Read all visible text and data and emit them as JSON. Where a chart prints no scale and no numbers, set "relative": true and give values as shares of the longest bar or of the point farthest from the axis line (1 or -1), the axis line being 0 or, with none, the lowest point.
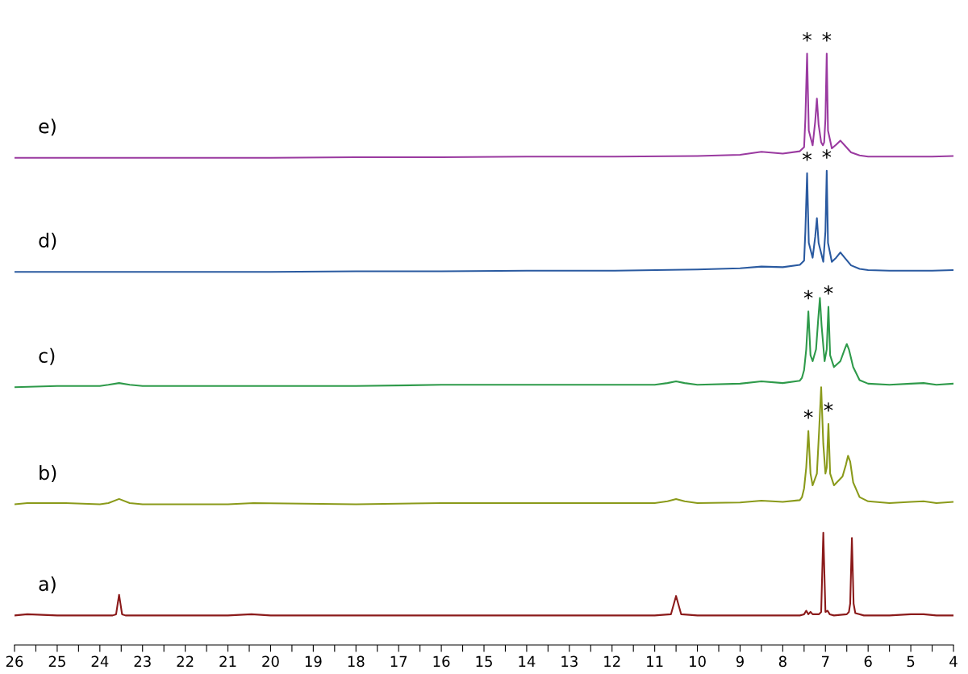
{
  "chart_data": {
    "type": "line",
    "relative": true,
    "xlim": [
      26,
      4
    ],
    "xticks": [
      26,
      {
        "value": 25.5,
        "label": null
      },
      25,
      {
        "value": 24.5,
        "label": null
      },
      24,
      {
        "value": 23.5,
        "label": null
      },
      23,
      {
        "value": 22.5,
        "label": null
      },
      22,
      {
        "value": 21.5,
        "label": null
      },
      21,
      {
        "value": 20.5,
        "label": null
      },
      20,
      {
        "value": 19.5,
        "label": null
      },
      19,
      {
        "value": 18.5,
        "label": null
      },
      18,
      {
        "value": 17.5,
        "label": null
      },
      17,
      {
        "value": 16.5,
        "label": null
      },
      16,
      {
        "value": 15.5,
        "label": null
      },
      15,
      {
        "value": 14.5,
        "label": null
      },
      14,
      {
        "value": 13.5,
        "label": null
      },
      13,
      {
        "value": 12.5,
        "label": null
      },
      12,
      {
        "value": 11.5,
        "label": null
      },
      11,
      {
        "value": 10.5,
        "label": null
      },
      10,
      {
        "value": 9.5,
        "label": null
      },
      9,
      {
        "value": 8.5,
        "label": null
      },
      8,
      {
        "value": 7.5,
        "label": null
      },
      7,
      {
        "value": 6.5,
        "label": null
      },
      6,
      {
        "value": 5.5,
        "label": null
      },
      5,
      {
        "value": 4.5,
        "label": null
      },
      4
    ],
    "tick_labels": "x",
    "grid": false,
    "legend": false,
    "marker": "none",
    "line_style": "solid",
    "series": [
      {
        "name": "a)",
        "color": "#8b1a1a",
        "x": [
          26,
          25.7,
          25,
          24,
          23.7,
          23.62,
          23.55,
          23.48,
          23.4,
          23,
          22,
          21,
          20.45,
          20,
          18,
          16,
          14,
          12,
          11,
          10.62,
          10.55,
          10.5,
          10.45,
          10.38,
          10,
          9,
          8,
          7.6,
          7.5,
          7.45,
          7.4,
          7.35,
          7.3,
          7.15,
          7.1,
          7.05,
          7.0,
          6.95,
          6.9,
          6.8,
          6.5,
          6.45,
          6.42,
          6.38,
          6.34,
          6.3,
          6.1,
          5.5,
          5.0,
          4.7,
          4.4,
          4
        ],
        "values": [
          0.05,
          0.052,
          0.05,
          0.05,
          0.05,
          0.052,
          0.085,
          0.052,
          0.05,
          0.05,
          0.05,
          0.05,
          0.052,
          0.05,
          0.05,
          0.05,
          0.05,
          0.05,
          0.05,
          0.052,
          0.07,
          0.083,
          0.07,
          0.052,
          0.05,
          0.05,
          0.05,
          0.05,
          0.052,
          0.058,
          0.052,
          0.056,
          0.052,
          0.052,
          0.056,
          0.19,
          0.056,
          0.058,
          0.052,
          0.05,
          0.052,
          0.056,
          0.07,
          0.181,
          0.07,
          0.054,
          0.05,
          0.05,
          0.052,
          0.052,
          0.05,
          0.05
        ]
      },
      {
        "name": "b)",
        "color": "#8a9a1a",
        "x": [
          26,
          25.7,
          24.8,
          24,
          23.8,
          23.55,
          23.3,
          23,
          21,
          20.4,
          18,
          16,
          14,
          12,
          11,
          10.7,
          10.5,
          10.3,
          10,
          9,
          8.5,
          8,
          7.6,
          7.55,
          7.5,
          7.45,
          7.4,
          7.35,
          7.3,
          7.2,
          7.15,
          7.1,
          7.05,
          7.0,
          6.97,
          6.93,
          6.89,
          6.8,
          6.6,
          6.52,
          6.47,
          6.42,
          6.35,
          6.2,
          6,
          5.5,
          5,
          4.7,
          4.4,
          4
        ],
        "values": [
          0.238,
          0.24,
          0.24,
          0.238,
          0.24,
          0.247,
          0.24,
          0.238,
          0.238,
          0.24,
          0.238,
          0.24,
          0.24,
          0.24,
          0.24,
          0.243,
          0.247,
          0.243,
          0.24,
          0.241,
          0.244,
          0.242,
          0.245,
          0.25,
          0.265,
          0.3,
          0.362,
          0.29,
          0.27,
          0.29,
          0.36,
          0.436,
          0.34,
          0.29,
          0.3,
          0.374,
          0.29,
          0.27,
          0.285,
          0.305,
          0.32,
          0.31,
          0.275,
          0.25,
          0.243,
          0.24,
          0.242,
          0.243,
          0.24,
          0.242
        ]
      },
      {
        "name": "c)",
        "color": "#2e9a4a",
        "x": [
          26,
          25,
          24,
          23.8,
          23.55,
          23.3,
          23,
          21,
          18,
          16,
          14,
          12,
          11,
          10.7,
          10.5,
          10.3,
          10,
          9,
          8.5,
          8,
          7.6,
          7.55,
          7.5,
          7.45,
          7.4,
          7.35,
          7.3,
          7.22,
          7.17,
          7.13,
          7.09,
          7.02,
          6.97,
          6.93,
          6.89,
          6.8,
          6.65,
          6.55,
          6.5,
          6.45,
          6.35,
          6.2,
          6,
          5.5,
          5,
          4.7,
          4.4,
          4
        ],
        "values": [
          0.436,
          0.438,
          0.438,
          0.44,
          0.443,
          0.44,
          0.438,
          0.438,
          0.438,
          0.44,
          0.44,
          0.44,
          0.44,
          0.443,
          0.446,
          0.443,
          0.44,
          0.442,
          0.446,
          0.443,
          0.447,
          0.452,
          0.465,
          0.5,
          0.564,
          0.49,
          0.48,
          0.5,
          0.55,
          0.587,
          0.54,
          0.48,
          0.5,
          0.572,
          0.49,
          0.47,
          0.48,
          0.5,
          0.509,
          0.5,
          0.47,
          0.448,
          0.442,
          0.44,
          0.442,
          0.443,
          0.44,
          0.442
        ]
      },
      {
        "name": "d)",
        "color": "#2a5aa0",
        "x": [
          26,
          24,
          22,
          20,
          18,
          16,
          14,
          12,
          10,
          9,
          8.5,
          8,
          7.6,
          7.5,
          7.47,
          7.43,
          7.39,
          7.3,
          7.24,
          7.2,
          7.16,
          7.05,
          7.0,
          6.97,
          6.94,
          6.85,
          6.75,
          6.65,
          6.55,
          6.4,
          6.2,
          6,
          5.5,
          5,
          4.5,
          4
        ],
        "values": [
          0.631,
          0.631,
          0.631,
          0.631,
          0.632,
          0.632,
          0.633,
          0.633,
          0.635,
          0.637,
          0.64,
          0.639,
          0.643,
          0.65,
          0.7,
          0.798,
          0.68,
          0.655,
          0.69,
          0.722,
          0.68,
          0.648,
          0.7,
          0.802,
          0.68,
          0.648,
          0.655,
          0.664,
          0.655,
          0.642,
          0.636,
          0.634,
          0.633,
          0.633,
          0.633,
          0.634
        ]
      },
      {
        "name": "e)",
        "color": "#9a3aa0",
        "x": [
          26,
          24,
          22,
          20,
          18,
          16,
          14,
          12,
          10,
          9,
          8.5,
          8,
          7.6,
          7.5,
          7.47,
          7.43,
          7.39,
          7.3,
          7.24,
          7.2,
          7.16,
          7.1,
          7.06,
          7.03,
          7.0,
          6.97,
          6.94,
          6.85,
          6.75,
          6.65,
          6.55,
          6.4,
          6.2,
          6,
          5.5,
          5,
          4.5,
          4
        ],
        "values": [
          0.824,
          0.824,
          0.824,
          0.824,
          0.825,
          0.825,
          0.826,
          0.826,
          0.827,
          0.829,
          0.834,
          0.831,
          0.835,
          0.842,
          0.89,
          1.0,
          0.87,
          0.845,
          0.885,
          0.924,
          0.88,
          0.85,
          0.845,
          0.85,
          0.89,
          1.0,
          0.87,
          0.84,
          0.846,
          0.853,
          0.845,
          0.833,
          0.828,
          0.826,
          0.826,
          0.826,
          0.826,
          0.827
        ]
      }
    ],
    "annotations": [
      {
        "text": "*",
        "x": 7.43,
        "y": 1.0
      },
      {
        "text": "*",
        "x": 6.97,
        "y": 1.0
      },
      {
        "text": "*",
        "x": 7.43,
        "y": 0.798
      },
      {
        "text": "*",
        "x": 6.97,
        "y": 0.802
      },
      {
        "text": "*",
        "x": 7.4,
        "y": 0.564
      },
      {
        "text": "*",
        "x": 6.93,
        "y": 0.572
      },
      {
        "text": "*",
        "x": 7.4,
        "y": 0.362
      },
      {
        "text": "*",
        "x": 6.93,
        "y": 0.374
      }
    ]
  }
}
